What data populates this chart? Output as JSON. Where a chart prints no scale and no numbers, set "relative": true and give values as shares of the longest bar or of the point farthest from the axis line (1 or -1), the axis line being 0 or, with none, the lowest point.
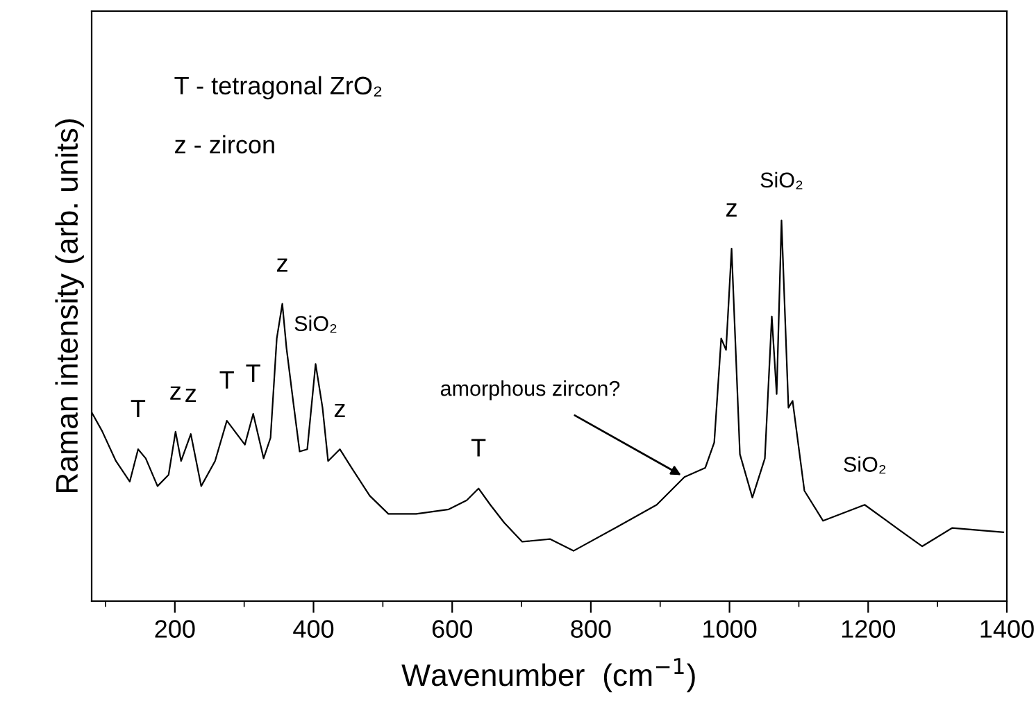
{
  "chart_data": {
    "type": "line",
    "relative": true,
    "xlabel": "Wavenumber  (cm$^{−1}$)",
    "ylabel": "Raman intensity (arb. units)",
    "xlim": [
      80,
      1400
    ],
    "xticks": [
      {
        "value": 100,
        "label": null
      },
      200,
      {
        "value": 300,
        "label": null
      },
      400,
      {
        "value": 500,
        "label": null
      },
      600,
      {
        "value": 700,
        "label": null
      },
      800,
      {
        "value": 900,
        "label": null
      },
      1000,
      {
        "value": 1100,
        "label": null
      },
      1200,
      {
        "value": 1300,
        "label": null
      },
      1400
    ],
    "grid": false,
    "legend": false,
    "marker": "none",
    "line_style": "solid",
    "tick_labels": "x",
    "series": [
      {
        "color": "#000000",
        "x": [
          80,
          95,
          115,
          135,
          147,
          158,
          175,
          191,
          201,
          209,
          223,
          238,
          258,
          275,
          291,
          301,
          313,
          328,
          338,
          347,
          355,
          361,
          371,
          380,
          391,
          403,
          413,
          421,
          438,
          455,
          481,
          508,
          548,
          595,
          621,
          638,
          655,
          675,
          701,
          741,
          775,
          835,
          895,
          935,
          965,
          978,
          988,
          995,
          1003,
          1015,
          1033,
          1051,
          1061,
          1068,
          1075,
          1085,
          1091,
          1108,
          1135,
          1195,
          1241,
          1278,
          1321,
          1395
        ],
        "values": [
          0.496,
          0.447,
          0.368,
          0.314,
          0.399,
          0.375,
          0.302,
          0.332,
          0.445,
          0.368,
          0.439,
          0.302,
          0.368,
          0.474,
          0.435,
          0.411,
          0.492,
          0.375,
          0.429,
          0.69,
          0.781,
          0.665,
          0.52,
          0.393,
          0.399,
          0.623,
          0.508,
          0.368,
          0.399,
          0.35,
          0.277,
          0.229,
          0.229,
          0.241,
          0.265,
          0.296,
          0.253,
          0.206,
          0.156,
          0.163,
          0.132,
          0.192,
          0.253,
          0.326,
          0.35,
          0.417,
          0.69,
          0.66,
          0.926,
          0.386,
          0.272,
          0.375,
          0.748,
          0.544,
          1.0,
          0.508,
          0.526,
          0.29,
          0.211,
          0.253,
          0.192,
          0.144,
          0.192,
          0.181
        ]
      }
    ],
    "annotations": [
      "T - tetragonal ZrO₂",
      "z - zircon",
      {
        "text": "T",
        "x": 147,
        "y": 0.399
      },
      {
        "text": "z",
        "x": 201,
        "y": 0.445
      },
      {
        "text": "z",
        "x": 223,
        "y": 0.439
      },
      {
        "text": "T",
        "x": 275,
        "y": 0.474
      },
      {
        "text": "T",
        "x": 313,
        "y": 0.492
      },
      {
        "text": "z",
        "x": 355,
        "y": 0.781
      },
      {
        "text": "SiO₂",
        "x": 403,
        "y": 0.623
      },
      {
        "text": "z",
        "x": 438,
        "y": 0.399
      },
      {
        "text": "T",
        "x": 638,
        "y": 0.296
      },
      {
        "text": "amorphous zircon?",
        "x": 935,
        "y": 0.326
      },
      {
        "text": "z",
        "x": 1003,
        "y": 0.926
      },
      {
        "text": "SiO₂",
        "x": 1075,
        "y": 1.0
      },
      {
        "text": "SiO₂",
        "x": 1195,
        "y": 0.253
      }
    ]
  }
}
